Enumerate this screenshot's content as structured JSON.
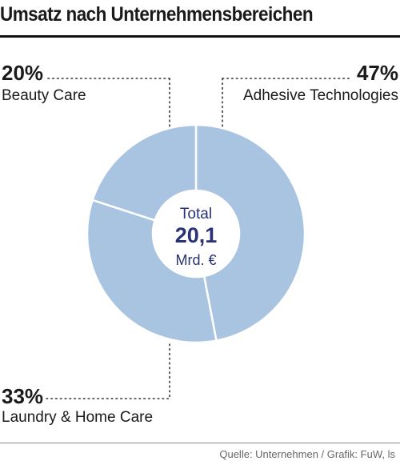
{
  "title": "Umsatz nach Unternehmensbereichen",
  "source": "Quelle: Unternehmen / Grafik: FuW, ls",
  "colors": {
    "slice": "#a9c4e0",
    "separator": "#ffffff",
    "center_text": "#2a3275",
    "leader": "#333333"
  },
  "center": {
    "label": "Total",
    "value": "20,1",
    "unit": "Mrd. €"
  },
  "chart_data": {
    "type": "pie",
    "title": "Umsatz nach Unternehmensbereichen",
    "donut": true,
    "slices": [
      {
        "name": "Adhesive Technologies",
        "value": 47,
        "label": "47%"
      },
      {
        "name": "Laundry & Home Care",
        "value": 33,
        "label": "33%"
      },
      {
        "name": "Beauty Care",
        "value": 20,
        "label": "20%"
      }
    ],
    "total_label": "Total",
    "total_value": "20,1",
    "total_unit": "Mrd. €"
  }
}
